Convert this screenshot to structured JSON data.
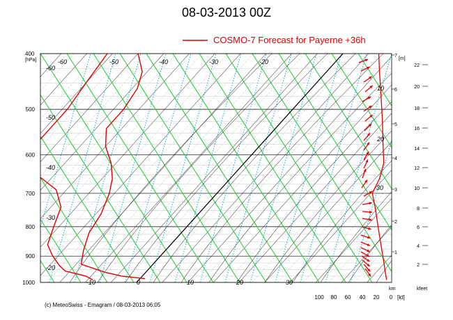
{
  "title": "08-03-2013  00Z",
  "legend": {
    "label": "COSMO-7 Forecast for Payerne   +36h",
    "color": "#e00000"
  },
  "footer": "(c) MeteoSwiss - Emagram  /  08-03-2013  06:05",
  "colors": {
    "dry_adiabat": "#2ecc40",
    "moist_adiabat": "#000000",
    "mixing_ratio": "#00b4c8",
    "profile": "#e00000",
    "grid": "#000000"
  },
  "chart_data": {
    "type": "line",
    "chart_kind": "emagram",
    "title": "08-03-2013  00Z",
    "ylabel": "[hPa]",
    "ylim": [
      1000,
      400
    ],
    "y_scale": "log",
    "pressure_ticks": [
      400,
      500,
      600,
      700,
      800,
      900,
      1000
    ],
    "isotherm_labels_top": [
      -60,
      -50,
      -40,
      -30,
      -20
    ],
    "isotherm_labels_left": [
      -60,
      -50,
      -40,
      -30,
      -20
    ],
    "isotherm_labels_bottom": [
      -10,
      0,
      10,
      20,
      30
    ],
    "height_m_label": "[m]",
    "height_km_ticks": [
      1,
      2,
      3,
      4,
      5,
      6,
      7
    ],
    "height_kfeet_ticks": [
      2,
      4,
      6,
      8,
      10,
      12,
      14,
      16,
      18,
      20,
      22
    ],
    "wind_speed_axis_label": "[kt]",
    "wind_speed_ticks": [
      100,
      80,
      60,
      40,
      20,
      0
    ],
    "wind_profile_labels": [
      10,
      20,
      30
    ],
    "km_label": "km",
    "kfeet_label": "kfeet",
    "series": [
      {
        "name": "COSMO-7 Forecast for Payerne   +36h",
        "role": "temperature",
        "points": [
          [
            400,
            -40
          ],
          [
            430,
            -36
          ],
          [
            460,
            -34
          ],
          [
            500,
            -33
          ],
          [
            540,
            -33
          ],
          [
            580,
            -30
          ],
          [
            620,
            -26
          ],
          [
            660,
            -23
          ],
          [
            700,
            -21
          ],
          [
            760,
            -19
          ],
          [
            820,
            -18
          ],
          [
            880,
            -16
          ],
          [
            930,
            -14
          ],
          [
            960,
            -8
          ],
          [
            975,
            -4
          ],
          [
            985,
            1
          ]
        ]
      },
      {
        "name": "",
        "role": "dewpoint",
        "points": [
          [
            400,
            -46
          ],
          [
            450,
            -45
          ],
          [
            500,
            -44
          ],
          [
            560,
            -44
          ],
          [
            600,
            -44
          ],
          [
            640,
            -40
          ],
          [
            690,
            -32
          ],
          [
            740,
            -28
          ],
          [
            800,
            -26
          ],
          [
            860,
            -24
          ],
          [
            900,
            -21
          ],
          [
            935,
            -18
          ],
          [
            955,
            -16
          ],
          [
            975,
            -11
          ],
          [
            990,
            -9
          ]
        ]
      }
    ],
    "wind_speed_profile": [
      [
        400,
        17
      ],
      [
        430,
        16
      ],
      [
        470,
        14
      ],
      [
        520,
        12
      ],
      [
        580,
        11
      ],
      [
        620,
        10
      ],
      [
        660,
        16
      ],
      [
        700,
        26
      ],
      [
        740,
        22
      ],
      [
        800,
        18
      ],
      [
        860,
        14
      ],
      [
        920,
        10
      ],
      [
        960,
        8
      ],
      [
        990,
        6
      ]
    ]
  }
}
